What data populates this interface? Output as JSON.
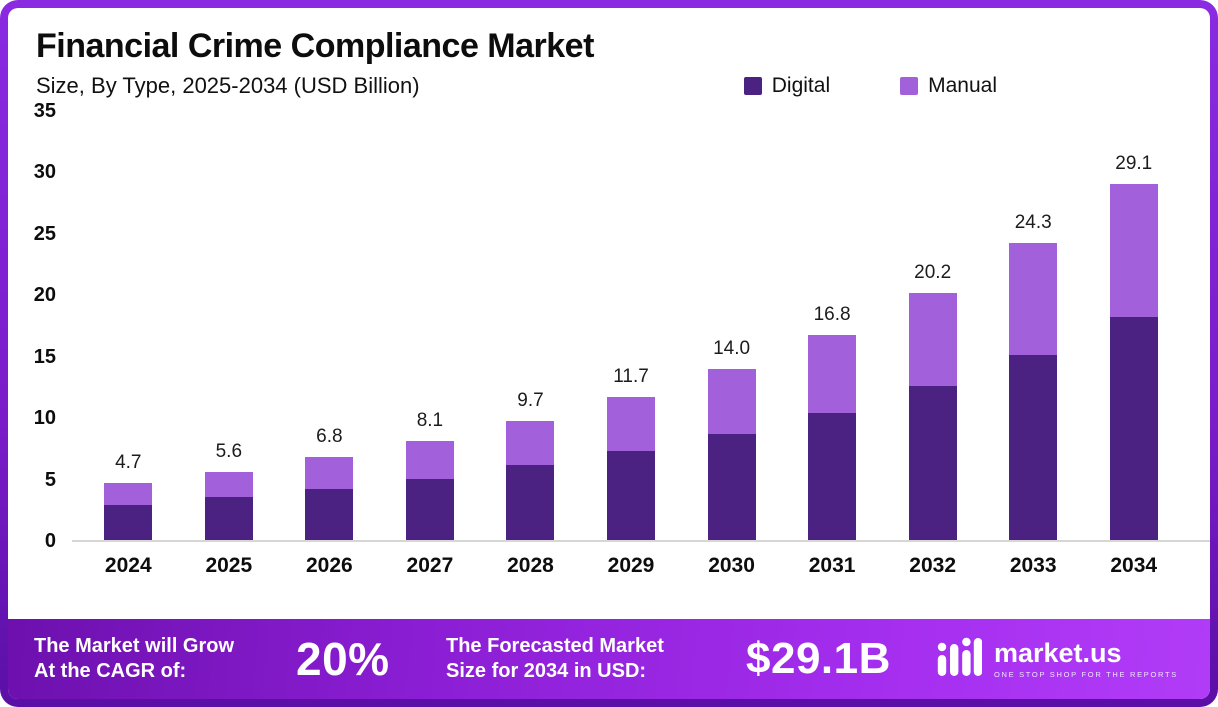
{
  "chart_data": {
    "type": "bar",
    "stacked": true,
    "title": "Financial Crime Compliance Market",
    "subtitle": "Size, By Type, 2025-2034 (USD Billion)",
    "categories": [
      "2024",
      "2025",
      "2026",
      "2027",
      "2028",
      "2029",
      "2030",
      "2031",
      "2032",
      "2033",
      "2034"
    ],
    "series": [
      {
        "name": "Digital",
        "color": "#4b2182",
        "values": [
          2.9,
          3.5,
          4.2,
          5.0,
          6.1,
          7.3,
          8.7,
          10.4,
          12.6,
          15.1,
          18.2
        ]
      },
      {
        "name": "Manual",
        "color": "#a261db",
        "values": [
          1.8,
          2.1,
          2.6,
          3.1,
          3.6,
          4.4,
          5.3,
          6.4,
          7.6,
          9.2,
          10.9
        ]
      }
    ],
    "totals": [
      "4.7",
      "5.6",
      "6.8",
      "8.1",
      "9.7",
      "11.7",
      "14.0",
      "16.8",
      "20.2",
      "24.3",
      "29.1"
    ],
    "ylim": [
      0,
      35
    ],
    "yticks": [
      0,
      5,
      10,
      15,
      20,
      25,
      30,
      35
    ],
    "xlabel": "",
    "ylabel": "",
    "grid": false,
    "legend_position": "top"
  },
  "legend": {
    "items": [
      {
        "label": "Digital",
        "color": "#4b2182"
      },
      {
        "label": "Manual",
        "color": "#a261db"
      }
    ]
  },
  "footer": {
    "cagr_label_line1": "The Market will Grow",
    "cagr_label_line2": "At the CAGR of:",
    "cagr_value": "20%",
    "forecast_label_line1": "The Forecasted Market",
    "forecast_label_line2": "Size for 2034 in USD:",
    "forecast_value": "$29.1B",
    "brand_name": "market.us",
    "brand_tagline": "ONE STOP SHOP FOR THE REPORTS"
  },
  "colors": {
    "digital": "#4b2182",
    "manual": "#a261db",
    "border": "#8a2be2",
    "footer_gradient_start": "#6d10ae",
    "footer_gradient_end": "#b13cf7"
  }
}
